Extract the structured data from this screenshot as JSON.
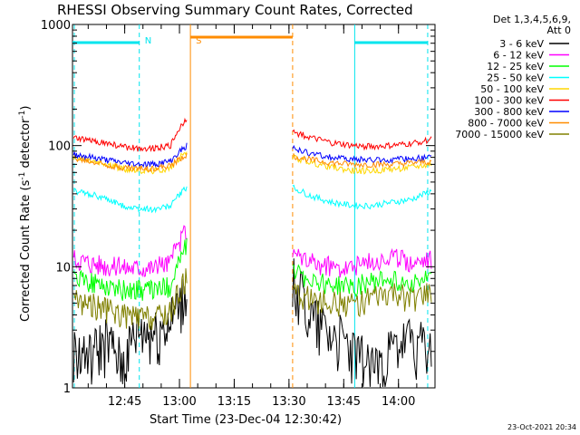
{
  "chart_data": {
    "type": "line",
    "title": "RHESSI Observing Summary Count Rates, Corrected",
    "xlabel": "Start Time (23-Dec-04 12:30:42)",
    "ylabel_main": "Corrected Count Rate (s",
    "ylabel_sup": "-1",
    "ylabel_end": " detector",
    "ylabel_sup2": "-1",
    "ylabel_close": ")",
    "yscale": "log",
    "ylim": [
      1,
      1000
    ],
    "xlim": [
      "12:30:42",
      "14:10:00"
    ],
    "x_ticks": [
      "12:45",
      "13:00",
      "13:15",
      "13:30",
      "13:45",
      "14:00"
    ],
    "y_ticks": [
      "1",
      "10",
      "100",
      "1000"
    ],
    "legend_header": [
      "Det 1,3,4,5,6,9,",
      "Att 0"
    ],
    "legend_position": "right",
    "footer_date": "23-Oct-2021 20:34",
    "markers": [
      {
        "label": "N",
        "color": "#00e5ee",
        "time": "12:49"
      },
      {
        "label": "S",
        "color": "#ff8c00",
        "time": "13:03"
      }
    ],
    "night_intervals": [
      {
        "color": "#00e5ee",
        "from": "12:30",
        "to": "12:49",
        "style": "solid-bar"
      },
      {
        "color": "#00e5ee",
        "from": "13:48",
        "to": "14:08",
        "style": "solid-bar"
      }
    ],
    "saa_interval": {
      "color": "#ff8c00",
      "from": "13:03",
      "to": "13:31"
    },
    "gaps": [
      {
        "from": "13:03",
        "to": "13:31"
      }
    ],
    "series": [
      {
        "name": "3 - 6 keV",
        "color": "#000000",
        "before": [
          2,
          1.8,
          2.5,
          1.5,
          3.0,
          2.8,
          3.5,
          6
        ],
        "after": [
          8,
          4,
          3,
          2,
          1.5,
          2,
          2.5,
          2
        ]
      },
      {
        "name": "6 - 12 keV",
        "color": "#ff00ff",
        "before": [
          12,
          11,
          10.5,
          10,
          10,
          10,
          11,
          20
        ],
        "after": [
          12,
          11,
          10,
          10,
          11,
          12,
          11,
          12
        ]
      },
      {
        "name": "12 - 25 keV",
        "color": "#00ff00",
        "before": [
          8,
          7.5,
          7,
          6.5,
          6.5,
          6.5,
          7,
          15
        ],
        "after": [
          9,
          8,
          7,
          7,
          7.5,
          8,
          7.5,
          8
        ]
      },
      {
        "name": "25 - 50 keV",
        "color": "#00ffff",
        "before": [
          42,
          40,
          36,
          32,
          30,
          30,
          32,
          45
        ],
        "after": [
          45,
          38,
          34,
          32,
          32,
          34,
          36,
          42
        ]
      },
      {
        "name": "50 - 100 keV",
        "color": "#ffd700",
        "before": [
          80,
          75,
          70,
          65,
          62,
          62,
          65,
          90
        ],
        "after": [
          80,
          72,
          66,
          62,
          62,
          64,
          66,
          70
        ]
      },
      {
        "name": "100 - 300 keV",
        "color": "#ff0000",
        "before": [
          115,
          110,
          105,
          98,
          95,
          96,
          100,
          170
        ],
        "after": [
          130,
          115,
          105,
          100,
          98,
          100,
          104,
          112
        ]
      },
      {
        "name": "300 - 800 keV",
        "color": "#0000ff",
        "before": [
          85,
          80,
          76,
          72,
          70,
          70,
          74,
          100
        ],
        "after": [
          95,
          85,
          80,
          77,
          76,
          76,
          78,
          80
        ]
      },
      {
        "name": "800 - 7000 keV",
        "color": "#ff8c00",
        "before": [
          78,
          74,
          70,
          66,
          65,
          65,
          68,
          85
        ],
        "after": [
          82,
          76,
          72,
          70,
          70,
          70,
          72,
          74
        ]
      },
      {
        "name": "7000 - 15000 keV",
        "color": "#808000",
        "before": [
          5.5,
          5,
          4.5,
          4,
          3.8,
          3.8,
          4.2,
          8
        ],
        "after": [
          6,
          5.5,
          5,
          5,
          5.5,
          6,
          5.5,
          6
        ]
      }
    ]
  }
}
